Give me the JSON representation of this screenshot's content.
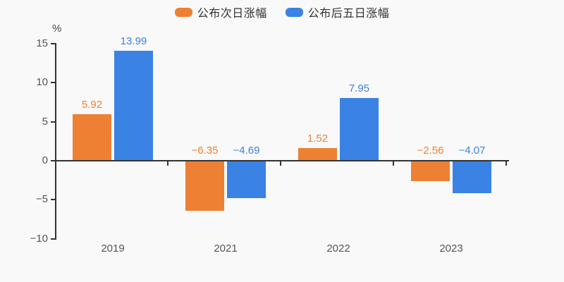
{
  "chart": {
    "background": "#f9f9f9",
    "axis_color": "#333333",
    "tick_label_color": "#555555",
    "legend_text_color": "#333333"
  },
  "chart_data": {
    "type": "bar",
    "title": "",
    "xlabel": "",
    "ylabel": "%",
    "categories": [
      "2019",
      "2021",
      "2022",
      "2023"
    ],
    "series": [
      {
        "name": "公布次日涨幅",
        "color": "#ee8033",
        "values": [
          5.92,
          -6.35,
          1.52,
          -2.56
        ],
        "labels": [
          "5.92",
          "−6.35",
          "1.52",
          "−2.56"
        ]
      },
      {
        "name": "公布后五日涨幅",
        "color": "#3a82e4",
        "values": [
          13.99,
          -4.69,
          7.95,
          -4.07
        ],
        "labels": [
          "13.99",
          "−4.69",
          "7.95",
          "−4.07"
        ]
      }
    ],
    "ylim": [
      -10,
      15
    ],
    "yticks": [
      15,
      10,
      5,
      0,
      -5,
      -10
    ],
    "ytick_labels": [
      "15",
      "10",
      "5",
      "0",
      "−5",
      "−10"
    ],
    "legend_position": "top",
    "grid": false
  }
}
